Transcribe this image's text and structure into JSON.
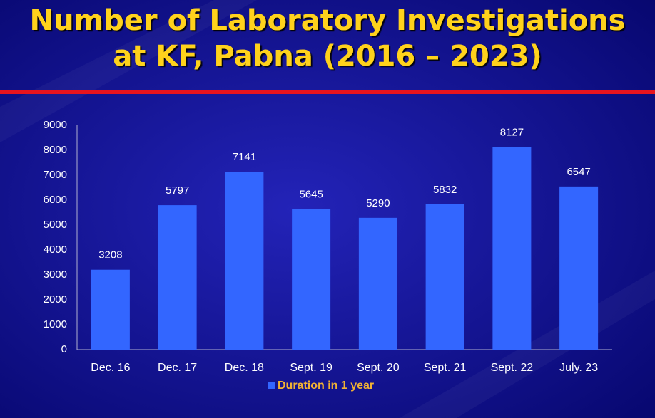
{
  "chart_data": {
    "type": "bar",
    "title": [
      "Number of Laboratory Investigations",
      "at KF, Pabna (2016 – 2023)"
    ],
    "categories": [
      "Dec. 16",
      "Dec. 17",
      "Dec. 18",
      "Sept. 19",
      "Sept. 20",
      "Sept. 21",
      "Sept. 22",
      "July. 23"
    ],
    "series": [
      {
        "name": "Duration in 1 year",
        "color": "#3366ff",
        "values": [
          3208,
          5797,
          7141,
          5645,
          5290,
          5832,
          8127,
          6547
        ]
      }
    ],
    "ylim": [
      0,
      9000
    ],
    "yticks": [
      0,
      1000,
      2000,
      3000,
      4000,
      5000,
      6000,
      7000,
      8000,
      9000
    ],
    "grid": false,
    "legend": "bottom"
  }
}
